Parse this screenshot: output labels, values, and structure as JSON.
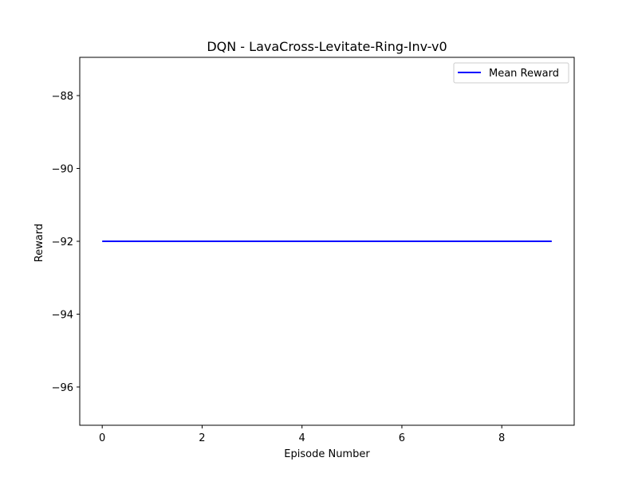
{
  "chart_data": {
    "type": "line",
    "title": "DQN - LavaCross-Levitate-Ring-Inv-v0",
    "xlabel": "Episode Number",
    "ylabel": "Reward",
    "xlim": [
      -0.45,
      9.45
    ],
    "ylim": [
      -97.05,
      -86.95
    ],
    "xticks": [
      0,
      2,
      4,
      6,
      8
    ],
    "yticks": [
      -96,
      -94,
      -92,
      -90,
      -88
    ],
    "xtick_labels": [
      "0",
      "2",
      "4",
      "6",
      "8"
    ],
    "ytick_labels": [
      "−96",
      "−94",
      "−92",
      "−90",
      "−88"
    ],
    "grid": false,
    "legend_position": "top-right",
    "series": [
      {
        "name": "Mean Reward",
        "color": "#0000ff",
        "x": [
          0,
          1,
          2,
          3,
          4,
          5,
          6,
          7,
          8,
          9
        ],
        "y": [
          -92,
          -92,
          -92,
          -92,
          -92,
          -92,
          -92,
          -92,
          -92,
          -92
        ]
      }
    ]
  }
}
